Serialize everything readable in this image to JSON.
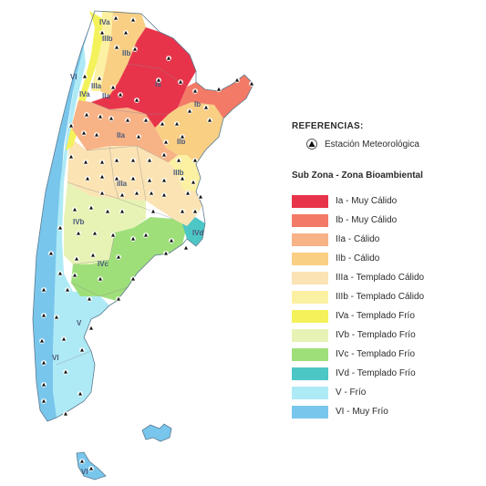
{
  "references": {
    "title": "REFERENCIAS:",
    "station_label": "Estación Meteorológica",
    "station_icon": "station-triangle-icon"
  },
  "legend": {
    "title": "Sub Zona - Zona Bioambiental",
    "items": [
      {
        "label": "Ia - Muy Cálido",
        "color": "#e8344a"
      },
      {
        "label": "Ib - Muy Cálido",
        "color": "#f37a66"
      },
      {
        "label": "IIa - Cálido",
        "color": "#f7b285"
      },
      {
        "label": "IIb - Cálido",
        "color": "#f9cf84"
      },
      {
        "label": "IIIa - Templado Cálido",
        "color": "#fbe3b4"
      },
      {
        "label": "IIIb - Templado Cálido",
        "color": "#fcf0a2"
      },
      {
        "label": "IVa - Templado Frío",
        "color": "#f4f25a"
      },
      {
        "label": "IVb - Templado Frío",
        "color": "#e6f3b4"
      },
      {
        "label": "IVc - Templado Frío",
        "color": "#9fdf7a"
      },
      {
        "label": "IVd - Templado Frío",
        "color": "#4dc6c6"
      },
      {
        "label": "V - Frío",
        "color": "#aeeaf6"
      },
      {
        "label": "VI - Muy Frío",
        "color": "#79c6ec"
      }
    ]
  },
  "map": {
    "zone_labels": [
      "IVa",
      "IIIb",
      "IIb",
      "VI",
      "IIIa",
      "IVa",
      "IIa",
      "Ia",
      "Ib",
      "IIa",
      "IIb",
      "IIIb",
      "IIIa",
      "IVb",
      "IVd",
      "IVc",
      "V",
      "VI",
      "VI"
    ]
  }
}
